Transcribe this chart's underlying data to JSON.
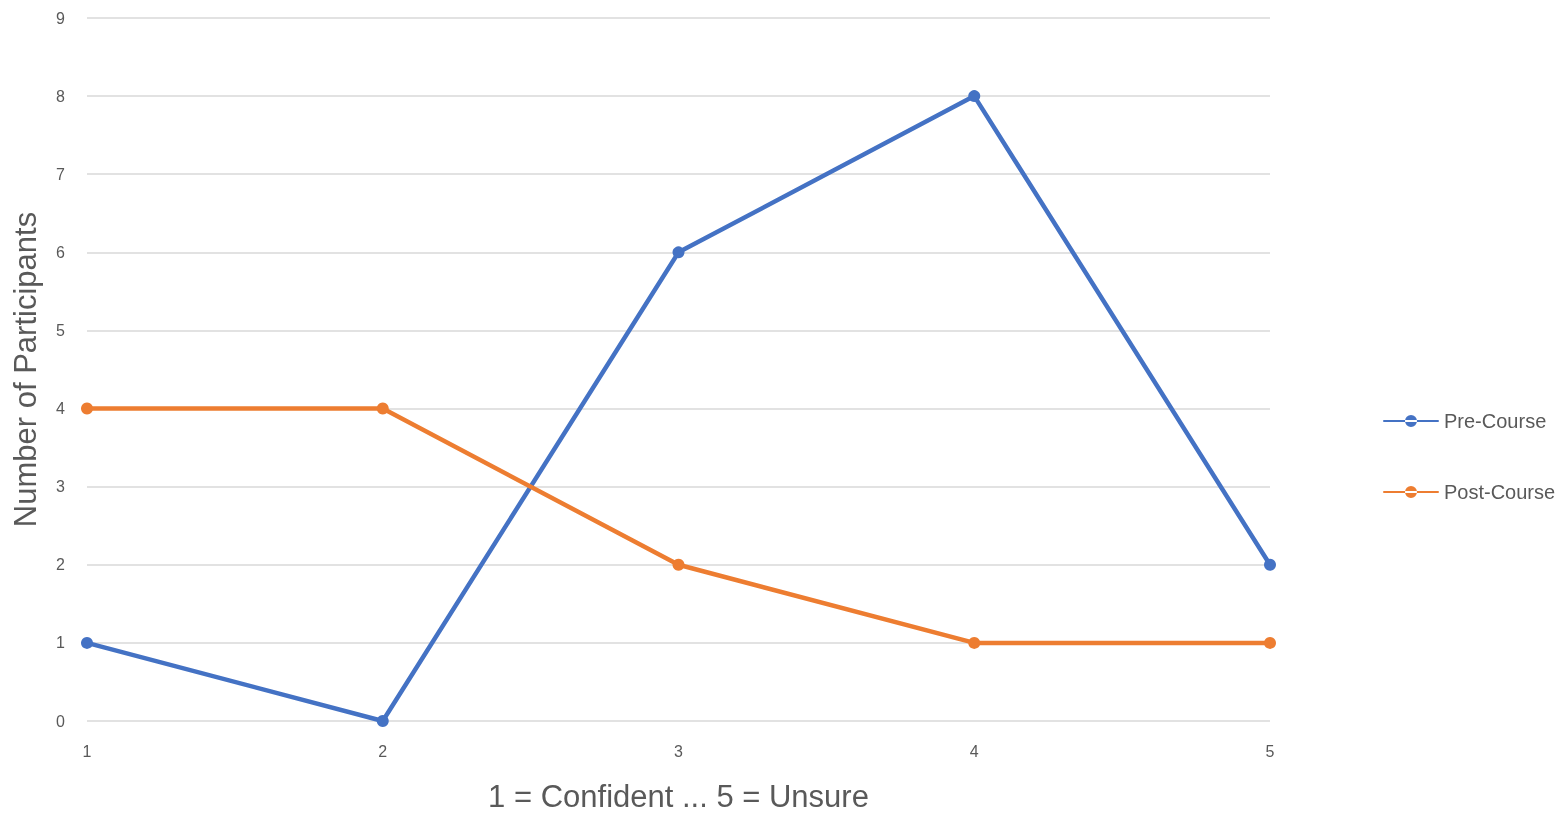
{
  "chart_data": {
    "type": "line",
    "xlabel": "1 = Confident ... 5 = Unsure",
    "ylabel": "Number of Participants",
    "categories": [
      "1",
      "2",
      "3",
      "4",
      "5"
    ],
    "series": [
      {
        "name": "Pre-Course",
        "color": "#4472c4",
        "values": [
          1,
          0,
          6,
          8,
          2
        ]
      },
      {
        "name": "Post-Course",
        "color": "#ed7d31",
        "values": [
          4,
          4,
          2,
          1,
          1
        ]
      }
    ],
    "ylim": [
      0,
      9
    ],
    "yticks": [
      0,
      1,
      2,
      3,
      4,
      5,
      6,
      7,
      8,
      9
    ],
    "grid": "y",
    "legend": "right",
    "marker": "circle",
    "line_style": "solid"
  }
}
